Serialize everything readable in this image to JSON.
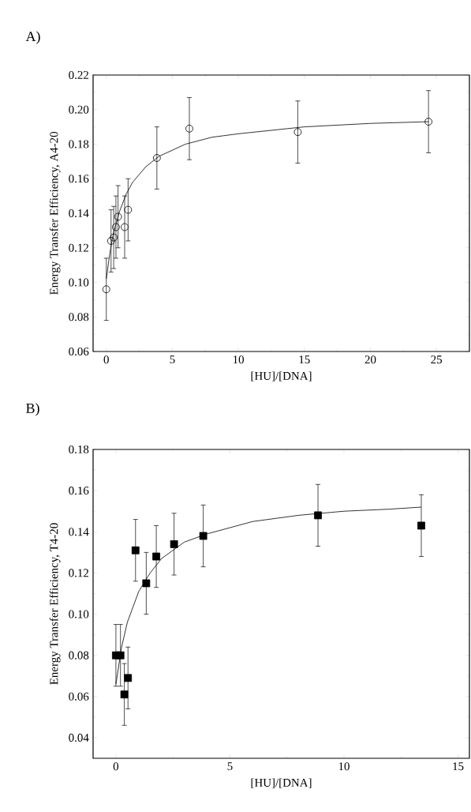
{
  "chart_data": [
    {
      "type": "scatter",
      "title": "A)",
      "xlabel": "[HU]/[DNA]",
      "ylabel": "Energy Transfer Efficiency, A4-20",
      "xlim": [
        -1,
        27.5
      ],
      "ylim": [
        0.06,
        0.22
      ],
      "xticks": [
        0,
        5,
        10,
        15,
        20,
        25
      ],
      "yticks": [
        {
          "value": 0.06,
          "label": "0.06"
        },
        {
          "value": 0.08,
          "label": "0.08"
        },
        {
          "value": 0.1,
          "label": "0.10"
        },
        {
          "value": 0.12,
          "label": "0.12"
        },
        {
          "value": 0.14,
          "label": "0.14"
        },
        {
          "value": 0.16,
          "label": "0.16"
        },
        {
          "value": 0.18,
          "label": "0.18"
        },
        {
          "value": 0.2,
          "label": "0.20"
        },
        {
          "value": 0.22,
          "label": "0.22"
        }
      ],
      "series": [
        {
          "marker": "circle",
          "color": "#000000",
          "x": [
            0,
            0.36,
            0.56,
            0.73,
            0.89,
            1.39,
            1.65,
            3.83,
            6.29,
            14.5,
            24.4
          ],
          "values": [
            0.096,
            0.124,
            0.126,
            0.132,
            0.138,
            0.132,
            0.142,
            0.172,
            0.189,
            0.187,
            0.193
          ],
          "errors": [
            0.018,
            0.018,
            0.018,
            0.018,
            0.018,
            0.018,
            0.018,
            0.018,
            0.018,
            0.018,
            0.018
          ]
        },
        {
          "type": "line",
          "color": "#000000",
          "x": [
            0,
            0.25,
            0.5,
            1,
            1.5,
            2,
            3,
            4,
            6,
            8,
            10,
            15,
            20,
            24.4
          ],
          "values": [
            0.102,
            0.116,
            0.127,
            0.141,
            0.151,
            0.158,
            0.167,
            0.173,
            0.18,
            0.184,
            0.186,
            0.19,
            0.192,
            0.193
          ]
        }
      ]
    },
    {
      "type": "scatter",
      "title": "B)",
      "xlabel": "[HU]/[DNA]",
      "ylabel": "Energy Transfer Efficiency, T4-20",
      "xlim": [
        -1,
        15.5
      ],
      "ylim": [
        0.03,
        0.18
      ],
      "xticks": [
        0,
        5,
        10,
        15
      ],
      "yticks": [
        {
          "value": 0.04,
          "label": "0.04"
        },
        {
          "value": 0.06,
          "label": "0.06"
        },
        {
          "value": 0.08,
          "label": "0.08"
        },
        {
          "value": 0.1,
          "label": "0.10"
        },
        {
          "value": 0.12,
          "label": "0.12"
        },
        {
          "value": 0.14,
          "label": "0.14"
        },
        {
          "value": 0.16,
          "label": "0.16"
        },
        {
          "value": 0.18,
          "label": "0.18"
        }
      ],
      "series": [
        {
          "marker": "square",
          "color": "#000000",
          "x": [
            0,
            0.2,
            0.37,
            0.53,
            0.86,
            1.33,
            1.77,
            2.55,
            3.83,
            8.86,
            13.39
          ],
          "values": [
            0.08,
            0.08,
            0.061,
            0.069,
            0.131,
            0.115,
            0.128,
            0.134,
            0.138,
            0.148,
            0.143
          ],
          "errors": [
            0.015,
            0.015,
            0.015,
            0.015,
            0.015,
            0.015,
            0.015,
            0.015,
            0.015,
            0.015,
            0.015
          ]
        },
        {
          "type": "line",
          "color": "#000000",
          "x": [
            0,
            0.25,
            0.5,
            1,
            1.5,
            2,
            3,
            4,
            6,
            8,
            10,
            12,
            13.39
          ],
          "values": [
            0.066,
            0.084,
            0.096,
            0.111,
            0.12,
            0.127,
            0.135,
            0.139,
            0.145,
            0.148,
            0.15,
            0.151,
            0.152
          ]
        }
      ]
    }
  ]
}
